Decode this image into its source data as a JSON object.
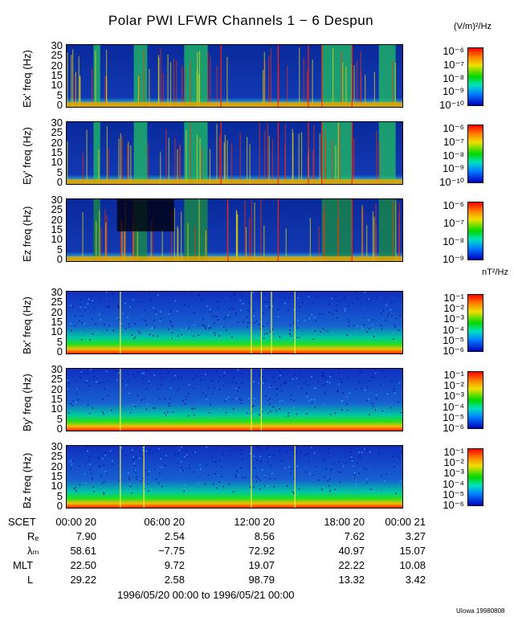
{
  "title": "Polar PWI LFWR Channels 1 − 6 Despun",
  "units_electric": "(V/m)²/Hz",
  "units_magnetic": "nT²/Hz",
  "credit": "UIowa 19980808",
  "time_range_text": "1996/05/20 00:00 to 1996/05/21 00:00",
  "colors": {
    "low": "#0000c8",
    "mid": "#00d200",
    "high": "#ff0000",
    "bg": "#0a2a9c"
  },
  "panels": [
    {
      "ylabel": "Ex' freq (Hz)",
      "cb_labels": [
        "10⁻⁶",
        "10⁻⁷",
        "10⁻⁸",
        "10⁻⁹",
        "10⁻¹⁰"
      ]
    },
    {
      "ylabel": "Ey' freq (Hz)",
      "cb_labels": [
        "10⁻⁶",
        "10⁻⁷",
        "10⁻⁸",
        "10⁻⁹",
        "10⁻¹⁰"
      ]
    },
    {
      "ylabel": "Ez freq (Hz)",
      "cb_labels": [
        "10⁻⁶",
        "10⁻⁷",
        "10⁻⁸",
        "10⁻⁹"
      ]
    },
    {
      "ylabel": "Bx' freq (Hz)",
      "cb_labels": [
        "10⁻¹",
        "10⁻²",
        "10⁻³",
        "10⁻⁴",
        "10⁻⁵",
        "10⁻⁶"
      ]
    },
    {
      "ylabel": "By' freq (Hz)",
      "cb_labels": [
        "10⁻¹",
        "10⁻²",
        "10⁻³",
        "10⁻⁴",
        "10⁻⁵",
        "10⁻⁶"
      ]
    },
    {
      "ylabel": "Bz freq (Hz)",
      "cb_labels": [
        "10⁻¹",
        "10⁻²",
        "10⁻³",
        "10⁻⁴",
        "10⁻⁵",
        "10⁻⁶"
      ]
    }
  ],
  "yticks": [
    "30",
    "25",
    "20",
    "15",
    "10",
    "5",
    "0"
  ],
  "ephemeris": {
    "labels": [
      "SCET",
      "Rₑ",
      "λₘ",
      "MLT",
      "L"
    ],
    "times": [
      "00:00 20",
      "06:00 20",
      "12:00 20",
      "18:00 20",
      "00:00 21"
    ],
    "RE": [
      "7.90",
      "2.54",
      "8.56",
      "7.62",
      "3.27"
    ],
    "lambda_m": [
      "58.61",
      "−7.75",
      "72.92",
      "40.97",
      "15.07"
    ],
    "MLT": [
      "22.50",
      "9.72",
      "19.07",
      "22.22",
      "10.08"
    ],
    "L": [
      "29.22",
      "2.58",
      "98.79",
      "13.32",
      "3.42"
    ]
  },
  "chart_data": [
    {
      "type": "heatmap",
      "title": "Ex'",
      "ylabel": "Ex' freq (Hz)",
      "ylim": [
        0,
        30
      ],
      "x_range": [
        "00:00 20",
        "00:00 21"
      ],
      "colorbar": {
        "units": "(V/m)²/Hz",
        "range": [
          1e-10,
          1e-06
        ],
        "scale": "log"
      }
    },
    {
      "type": "heatmap",
      "title": "Ey'",
      "ylabel": "Ey' freq (Hz)",
      "ylim": [
        0,
        30
      ],
      "x_range": [
        "00:00 20",
        "00:00 21"
      ],
      "colorbar": {
        "units": "(V/m)²/Hz",
        "range": [
          1e-10,
          1e-06
        ],
        "scale": "log"
      }
    },
    {
      "type": "heatmap",
      "title": "Ez",
      "ylabel": "Ez freq (Hz)",
      "ylim": [
        0,
        30
      ],
      "x_range": [
        "00:00 20",
        "00:00 21"
      ],
      "colorbar": {
        "units": "(V/m)²/Hz",
        "range": [
          1e-09,
          1e-06
        ],
        "scale": "log"
      }
    },
    {
      "type": "heatmap",
      "title": "Bx'",
      "ylabel": "Bx' freq (Hz)",
      "ylim": [
        0,
        30
      ],
      "x_range": [
        "00:00 20",
        "00:00 21"
      ],
      "colorbar": {
        "units": "nT²/Hz",
        "range": [
          1e-06,
          0.1
        ],
        "scale": "log"
      }
    },
    {
      "type": "heatmap",
      "title": "By'",
      "ylabel": "By' freq (Hz)",
      "ylim": [
        0,
        30
      ],
      "x_range": [
        "00:00 20",
        "00:00 21"
      ],
      "colorbar": {
        "units": "nT²/Hz",
        "range": [
          1e-06,
          0.1
        ],
        "scale": "log"
      }
    },
    {
      "type": "heatmap",
      "title": "Bz",
      "ylabel": "Bz freq (Hz)",
      "ylim": [
        0,
        30
      ],
      "x_range": [
        "00:00 20",
        "00:00 21"
      ],
      "colorbar": {
        "units": "nT²/Hz",
        "range": [
          1e-06,
          0.1
        ],
        "scale": "log"
      }
    }
  ]
}
